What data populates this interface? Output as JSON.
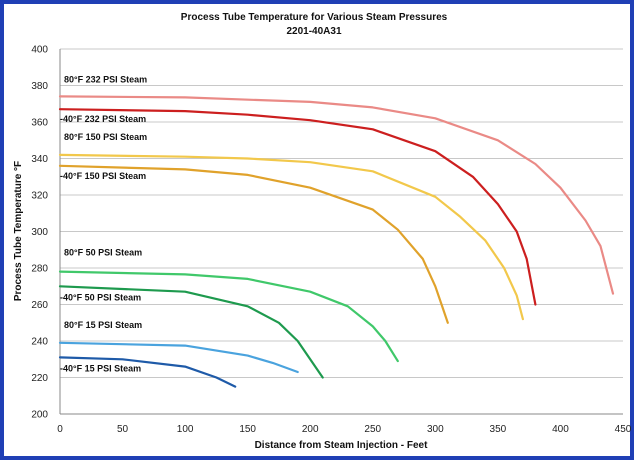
{
  "chart_data": {
    "type": "line",
    "title": "Process Tube Temperature for Various Steam Pressures",
    "subtitle": "2201-40A31",
    "xlabel": "Distance from Steam Injection - Feet",
    "ylabel": "Process Tube Temperature °F",
    "xlim": [
      0,
      450
    ],
    "ylim": [
      200,
      400
    ],
    "xticks": [
      "0",
      "50",
      "100",
      "150",
      "200",
      "250",
      "300",
      "350",
      "400",
      "450"
    ],
    "yticks": [
      "200",
      "220",
      "240",
      "260",
      "280",
      "300",
      "320",
      "340",
      "360",
      "380",
      "400"
    ],
    "grid": true,
    "series": [
      {
        "name": "80°F  232 PSI Steam",
        "color": "#ea8a86",
        "x": [
          0,
          100,
          200,
          250,
          300,
          350,
          380,
          400,
          420,
          432,
          442
        ],
        "y": [
          374,
          373.5,
          371,
          368,
          362,
          350,
          337,
          324,
          306,
          292,
          266
        ]
      },
      {
        "name": "-40°F  232 PSI Steam",
        "color": "#cc1f1f",
        "x": [
          0,
          100,
          150,
          200,
          250,
          300,
          330,
          350,
          365,
          373,
          380
        ],
        "y": [
          367,
          366,
          364,
          361,
          356,
          344,
          330,
          315,
          300,
          285,
          260
        ]
      },
      {
        "name": "80°F 150 PSI Steam",
        "color": "#f2c84b",
        "x": [
          0,
          100,
          150,
          200,
          250,
          300,
          320,
          340,
          355,
          365,
          370
        ],
        "y": [
          342,
          341,
          340,
          338,
          333,
          319,
          308,
          295,
          280,
          265,
          252
        ]
      },
      {
        "name": "-40°F 150 PSI Steam",
        "color": "#e0a22b",
        "x": [
          0,
          100,
          150,
          200,
          250,
          270,
          290,
          300,
          306,
          310
        ],
        "y": [
          336,
          334,
          331,
          324,
          312,
          301,
          285,
          270,
          258,
          250
        ]
      },
      {
        "name": "80°F  50 PSI Steam",
        "color": "#40c86a",
        "x": [
          0,
          100,
          150,
          200,
          230,
          250,
          260,
          270
        ],
        "y": [
          278,
          276.5,
          274,
          267,
          259,
          248,
          240,
          229
        ]
      },
      {
        "name": "-40°F  50 PSI Steam",
        "color": "#1e9a4e",
        "x": [
          0,
          100,
          150,
          175,
          190,
          200,
          210
        ],
        "y": [
          270,
          267,
          259,
          250,
          240,
          230,
          220
        ]
      },
      {
        "name": "80°F  15 PSI Steam",
        "color": "#4aa3de",
        "x": [
          0,
          100,
          150,
          170,
          190
        ],
        "y": [
          239,
          237.5,
          232,
          228,
          223
        ]
      },
      {
        "name": "-40°F  15 PSI Steam",
        "color": "#1e5aa8",
        "x": [
          0,
          50,
          100,
          125,
          140
        ],
        "y": [
          231,
          230,
          226,
          220,
          215
        ]
      }
    ]
  }
}
